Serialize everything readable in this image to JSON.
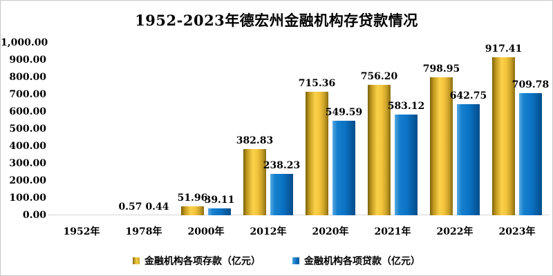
{
  "chart_data": {
    "type": "bar",
    "title": "1952-2023年德宏州金融机构存贷款情况",
    "categories": [
      "1952年",
      "1978年",
      "2000年",
      "2012年",
      "2020年",
      "2021年",
      "2022年",
      "2023年"
    ],
    "series": [
      {
        "name": "金融机构各项存款（亿元）",
        "color": "#F2C43B",
        "values": [
          null,
          0.57,
          51.96,
          382.83,
          715.36,
          756.2,
          798.95,
          917.41
        ],
        "labels": [
          "",
          "0.57",
          "51.96",
          "382.83",
          "715.36",
          "756.20",
          "798.95",
          "917.41"
        ]
      },
      {
        "name": "金融机构各项贷款（亿元）",
        "color": "#0B72C4",
        "values": [
          null,
          0.44,
          39.11,
          238.23,
          549.59,
          583.12,
          642.75,
          709.78
        ],
        "labels": [
          "",
          "0.44",
          "39.11",
          "238.23",
          "549.59",
          "583.12",
          "642.75",
          "709.78"
        ]
      }
    ],
    "y_axis": {
      "min": 0,
      "max": 1000,
      "step": 100,
      "tick_labels": [
        "0.00",
        "100.00",
        "200.00",
        "300.00",
        "400.00",
        "500.00",
        "600.00",
        "700.00",
        "800.00",
        "900.00",
        "1,000.00"
      ]
    },
    "grid": false,
    "legend_position": "bottom"
  }
}
